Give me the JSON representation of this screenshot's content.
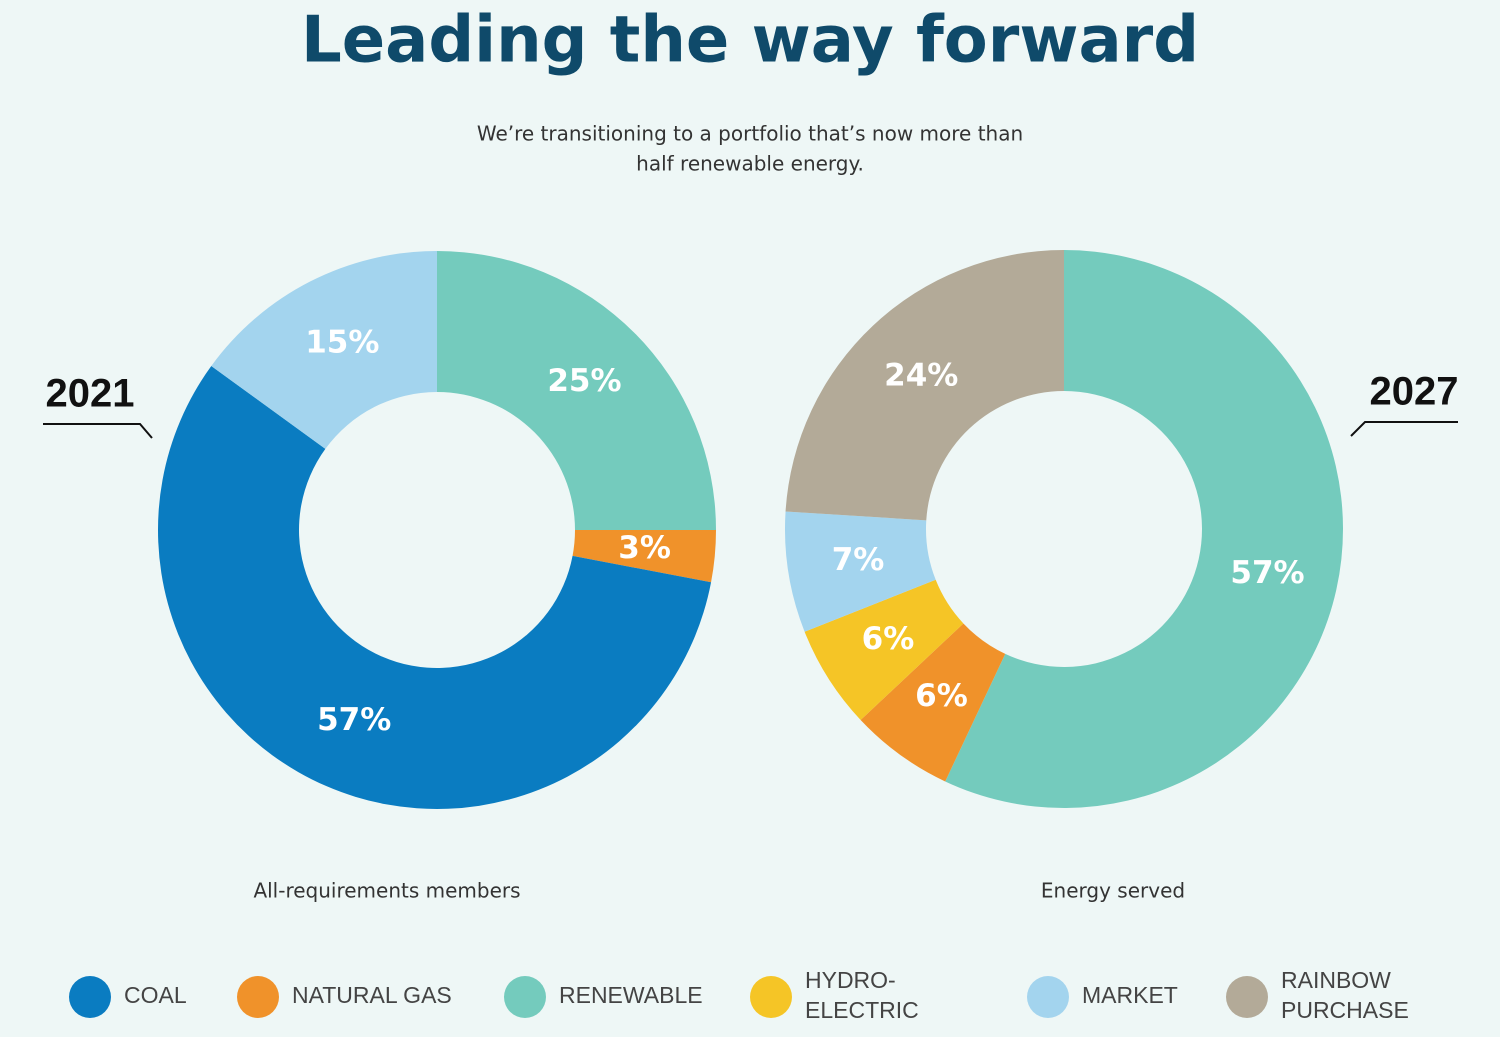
{
  "title": "Leading the way forward",
  "subtitle": [
    "We’re transitioning to a portfolio that’s now more than",
    "half renewable energy."
  ],
  "legend": [
    {
      "label": "COAL",
      "color": "#0a7cc1"
    },
    {
      "label": "NATURAL GAS",
      "color": "#f0922a"
    },
    {
      "label": "RENEWABLE",
      "color": "#74cbbd"
    },
    {
      "label": "HYDRO-ELECTRIC",
      "color": "#f5c526"
    },
    {
      "label": "MARKET",
      "color": "#a3d4ee"
    },
    {
      "label": "RAINBOW PURCHASE",
      "color": "#b3aa98"
    }
  ],
  "chart_data": [
    {
      "type": "pie",
      "donut": true,
      "label": "2021",
      "caption": "All-requirements members",
      "categories": [
        "RENEWABLE",
        "NATURAL GAS",
        "COAL",
        "MARKET"
      ],
      "values": [
        25,
        3,
        57,
        15
      ],
      "value_labels": [
        "25%",
        "3%",
        "57%",
        "15%"
      ],
      "colors": [
        "#74cbbd",
        "#f0922a",
        "#0a7cc1",
        "#a3d4ee"
      ]
    },
    {
      "type": "pie",
      "donut": true,
      "label": "2027",
      "caption": "Energy served",
      "categories": [
        "RENEWABLE",
        "NATURAL GAS",
        "HYDRO-ELECTRIC",
        "MARKET",
        "RAINBOW PURCHASE"
      ],
      "values": [
        57,
        6,
        6,
        7,
        24
      ],
      "value_labels": [
        "57%",
        "6%",
        "6%",
        "7%",
        "24%"
      ],
      "colors": [
        "#74cbbd",
        "#f0922a",
        "#f5c526",
        "#a3d4ee",
        "#b3aa98"
      ]
    }
  ]
}
